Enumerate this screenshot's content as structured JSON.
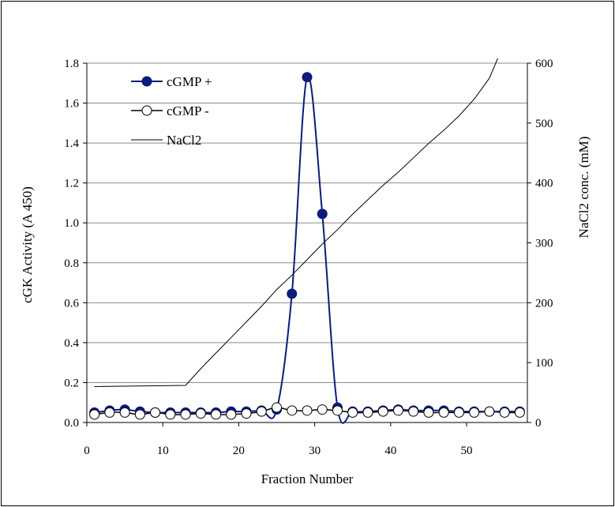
{
  "chart_data": {
    "type": "line",
    "xlabel": "Fraction Number",
    "ylabel_left": "cGK Activity (A 450)",
    "ylabel_right": "NaCl2 conc. (mM)",
    "xlim": [
      0,
      58
    ],
    "x_ticks": [
      0,
      10,
      20,
      30,
      40,
      50
    ],
    "ylim_left": [
      0,
      1.8
    ],
    "y_ticks_left": [
      "0.0",
      "0.2",
      "0.4",
      "0.6",
      "0.8",
      "1.0",
      "1.2",
      "1.4",
      "1.6",
      "1.8"
    ],
    "ylim_right": [
      0,
      600
    ],
    "y_ticks_right": [
      "0",
      "100",
      "200",
      "300",
      "400",
      "500",
      "600"
    ],
    "grid": "horizontal",
    "legend_position": "top-left",
    "series": [
      {
        "name": "cGMP +",
        "axis": "left",
        "marker": "filled-circle",
        "color": "#0d1b7a",
        "x": [
          1,
          3,
          5,
          7,
          9,
          11,
          13,
          15,
          17,
          19,
          21,
          23,
          25,
          27,
          29,
          31,
          33,
          35,
          37,
          39,
          41,
          43,
          45,
          47,
          49,
          51,
          53,
          55,
          57
        ],
        "y": [
          0.05,
          0.06,
          0.065,
          0.055,
          0.05,
          0.05,
          0.05,
          0.05,
          0.05,
          0.055,
          0.055,
          0.06,
          0.065,
          0.645,
          1.73,
          1.045,
          0.075,
          0.055,
          0.055,
          0.06,
          0.065,
          0.06,
          0.06,
          0.06,
          0.055,
          0.055,
          0.055,
          0.055,
          0.055
        ]
      },
      {
        "name": "cGMP -",
        "axis": "left",
        "marker": "open-circle",
        "color": "#000000",
        "x": [
          1,
          3,
          5,
          7,
          9,
          11,
          13,
          15,
          17,
          19,
          21,
          23,
          25,
          27,
          29,
          31,
          33,
          35,
          37,
          39,
          41,
          43,
          45,
          47,
          49,
          51,
          53,
          55,
          57
        ],
        "y": [
          0.04,
          0.05,
          0.05,
          0.04,
          0.05,
          0.04,
          0.04,
          0.045,
          0.04,
          0.04,
          0.045,
          0.055,
          0.075,
          0.06,
          0.06,
          0.065,
          0.06,
          0.05,
          0.05,
          0.055,
          0.06,
          0.055,
          0.05,
          0.05,
          0.05,
          0.05,
          0.055,
          0.05,
          0.05
        ]
      },
      {
        "name": "NaCl2",
        "axis": "right",
        "marker": "none",
        "color": "#000000",
        "x": [
          1,
          13,
          15,
          17,
          19,
          21,
          23,
          25,
          27,
          29,
          31,
          33,
          35,
          37,
          39,
          41,
          43,
          45,
          47,
          49,
          51,
          53,
          55,
          56.8
        ],
        "y": [
          60,
          62,
          90,
          116,
          142,
          168,
          194,
          222,
          246,
          272,
          298,
          322,
          348,
          372,
          396,
          418,
          442,
          466,
          488,
          512,
          540,
          575,
          635,
          678
        ]
      }
    ]
  }
}
